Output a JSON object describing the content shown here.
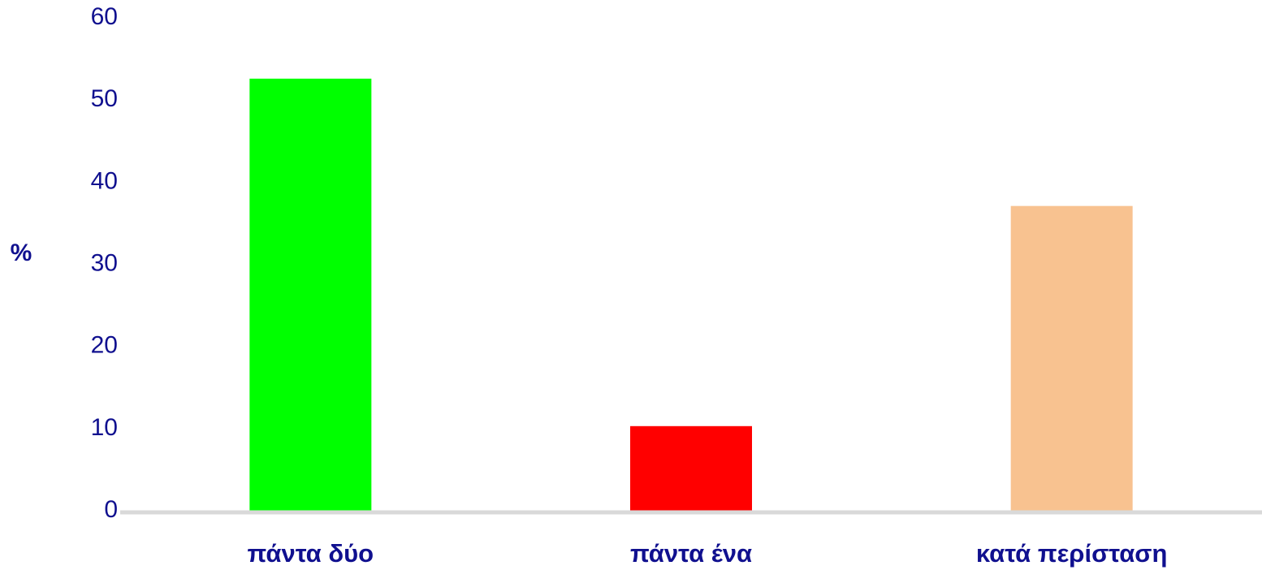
{
  "chart_data": {
    "type": "bar",
    "y_label": "%",
    "categories": [
      "πάντα δύο",
      "πάντα ένα",
      "κατά περίσταση"
    ],
    "values": [
      52.6,
      10.3,
      37.1
    ],
    "colors": [
      "#00ff00",
      "#ff0000",
      "#f8c290"
    ],
    "ylim": [
      0,
      60
    ],
    "yticks": [
      0,
      10,
      20,
      30,
      40,
      50,
      60
    ],
    "grid": false
  }
}
